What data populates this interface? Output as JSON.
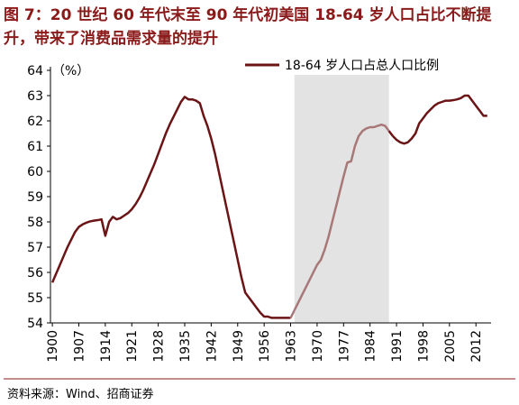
{
  "chart_data": {
    "type": "line",
    "title": "图 7：20 世纪 60 年代末至 90 年代初美国 18-64 岁人口占比不断提升，带来了消费品需求量的提升",
    "y_label": "（%）",
    "source": "资料来源：Wind、招商证券",
    "x": [
      1900,
      1901,
      1902,
      1903,
      1904,
      1905,
      1906,
      1907,
      1908,
      1909,
      1910,
      1911,
      1912,
      1913,
      1914,
      1915,
      1916,
      1917,
      1918,
      1919,
      1920,
      1921,
      1922,
      1923,
      1924,
      1925,
      1926,
      1927,
      1928,
      1929,
      1930,
      1931,
      1932,
      1933,
      1934,
      1935,
      1936,
      1937,
      1938,
      1939,
      1940,
      1941,
      1942,
      1943,
      1944,
      1945,
      1946,
      1947,
      1948,
      1949,
      1950,
      1951,
      1952,
      1953,
      1954,
      1955,
      1956,
      1957,
      1958,
      1959,
      1960,
      1961,
      1962,
      1963,
      1964,
      1965,
      1966,
      1967,
      1968,
      1969,
      1970,
      1971,
      1972,
      1973,
      1974,
      1975,
      1976,
      1977,
      1978,
      1979,
      1980,
      1981,
      1982,
      1983,
      1984,
      1985,
      1986,
      1987,
      1988,
      1989,
      1990,
      1991,
      1992,
      1993,
      1994,
      1995,
      1996,
      1997,
      1998,
      1999,
      2000,
      2001,
      2002,
      2003,
      2004,
      2005,
      2006,
      2007,
      2008,
      2009,
      2010,
      2011,
      2012,
      2013,
      2014,
      2015
    ],
    "series": [
      {
        "name": "18-64 岁人口占总人口比例",
        "color": "#6b1416",
        "highlight_color": "#a87878",
        "values": [
          55.6,
          55.95,
          56.3,
          56.65,
          57.0,
          57.3,
          57.6,
          57.8,
          57.9,
          57.97,
          58.02,
          58.05,
          58.07,
          58.1,
          57.45,
          58.0,
          58.2,
          58.1,
          58.15,
          58.25,
          58.35,
          58.5,
          58.7,
          58.95,
          59.25,
          59.6,
          59.95,
          60.3,
          60.7,
          61.1,
          61.5,
          61.85,
          62.15,
          62.45,
          62.75,
          62.95,
          62.85,
          62.85,
          62.8,
          62.7,
          62.2,
          61.8,
          61.3,
          60.7,
          60.0,
          59.3,
          58.6,
          57.9,
          57.2,
          56.5,
          55.8,
          55.2,
          55.0,
          54.8,
          54.6,
          54.4,
          54.25,
          54.25,
          54.2,
          54.2,
          54.2,
          54.2,
          54.2,
          54.2,
          54.5,
          54.8,
          55.1,
          55.4,
          55.7,
          56.0,
          56.3,
          56.5,
          56.9,
          57.4,
          58.0,
          58.6,
          59.2,
          59.8,
          60.35,
          60.4,
          61.0,
          61.4,
          61.6,
          61.7,
          61.75,
          61.75,
          61.8,
          61.85,
          61.8,
          61.6,
          61.4,
          61.25,
          61.15,
          61.1,
          61.15,
          61.3,
          61.5,
          61.9,
          62.1,
          62.3,
          62.45,
          62.6,
          62.7,
          62.75,
          62.8,
          62.8,
          62.82,
          62.85,
          62.9,
          63.0,
          63.0,
          62.8,
          62.6,
          62.4,
          62.2,
          62.2
        ]
      }
    ],
    "highlight": [
      1964,
      1989
    ],
    "highlight_color": "#e3e3e3",
    "xlim": [
      1899.5,
      2016
    ],
    "ylim": [
      54,
      64
    ],
    "xticks": [
      1900,
      1907,
      1914,
      1921,
      1928,
      1935,
      1942,
      1949,
      1956,
      1963,
      1970,
      1977,
      1984,
      1991,
      1998,
      2005,
      2012
    ],
    "yticks": [
      54,
      55,
      56,
      57,
      58,
      59,
      60,
      61,
      62,
      63,
      64
    ],
    "legend": "top-right"
  }
}
